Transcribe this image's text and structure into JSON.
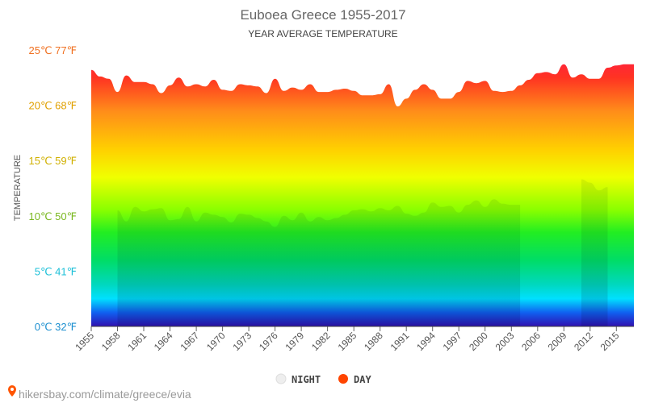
{
  "chart_data": {
    "type": "area",
    "title": "Euboea Greece 1955-2017",
    "subtitle": "YEAR AVERAGE TEMPERATURE",
    "ylabel": "TEMPERATURE",
    "ylim": [
      0,
      25
    ],
    "xlim": [
      1955,
      2017
    ],
    "y_ticks": [
      {
        "value": 0,
        "label": "0℃ 32℉",
        "color": "#1e90d0"
      },
      {
        "value": 5,
        "label": "5℃ 41℉",
        "color": "#1ec0d8"
      },
      {
        "value": 10,
        "label": "10℃ 50℉",
        "color": "#7ab820"
      },
      {
        "value": 15,
        "label": "15℃ 59℉",
        "color": "#d0b000"
      },
      {
        "value": 20,
        "label": "20℃ 68℉",
        "color": "#e0a000"
      },
      {
        "value": 25,
        "label": "25℃ 77℉",
        "color": "#f07020"
      }
    ],
    "x_ticks": [
      1955,
      1958,
      1961,
      1964,
      1967,
      1970,
      1973,
      1976,
      1979,
      1982,
      1985,
      1988,
      1991,
      1994,
      1997,
      2000,
      2003,
      2006,
      2009,
      2012,
      2015
    ],
    "grid": false,
    "legend_position": "bottom",
    "series": [
      {
        "name": "NIGHT",
        "color": "#eeeeee",
        "segments": [
          {
            "x": [
              1958,
              1959,
              1960,
              1961,
              1962,
              1963,
              1964,
              1965,
              1966,
              1967,
              1968,
              1969,
              1970,
              1971,
              1972,
              1973,
              1974,
              1975,
              1976,
              1977,
              1978,
              1979,
              1980,
              1981,
              1982,
              1983,
              1984,
              1985,
              1986,
              1987,
              1988,
              1989,
              1990,
              1991,
              1992,
              1993,
              1994,
              1995,
              1996,
              1997,
              1998,
              1999,
              2000,
              2001,
              2002,
              2003,
              2004
            ],
            "values": [
              10.5,
              9.5,
              10.8,
              10.4,
              10.6,
              10.7,
              9.6,
              9.7,
              10.8,
              9.5,
              10.3,
              10.1,
              9.9,
              9.4,
              10.2,
              10.1,
              9.8,
              9.5,
              9.0,
              10.0,
              9.6,
              10.3,
              9.5,
              9.9,
              9.6,
              9.8,
              10.1,
              10.5,
              10.6,
              10.4,
              10.7,
              10.5,
              10.9,
              10.2,
              10.0,
              10.3,
              11.2,
              10.8,
              10.9,
              10.3,
              11.0,
              11.4,
              10.8,
              11.5,
              11.1,
              11.0,
              11.0
            ]
          },
          {
            "x": [
              2011,
              2012,
              2013,
              2014
            ],
            "values": [
              13.3,
              13.0,
              12.3,
              12.6
            ]
          }
        ]
      },
      {
        "name": "DAY",
        "color": "#ff4400",
        "segments": [
          {
            "x": [
              1955,
              1956,
              1957,
              1958,
              1959,
              1960,
              1961,
              1962,
              1963,
              1964,
              1965,
              1966,
              1967,
              1968,
              1969,
              1970,
              1971,
              1972,
              1973,
              1974,
              1975,
              1976,
              1977,
              1978,
              1979,
              1980,
              1981,
              1982,
              1983,
              1984,
              1985,
              1986,
              1987,
              1988,
              1989,
              1990,
              1991,
              1992,
              1993,
              1994,
              1995,
              1996,
              1997,
              1998,
              1999,
              2000,
              2001,
              2002,
              2003,
              2004,
              2005,
              2006,
              2007,
              2008,
              2009,
              2010,
              2011,
              2012,
              2013,
              2014,
              2015,
              2016,
              2017
            ],
            "values": [
              23.2,
              22.6,
              22.4,
              21.2,
              22.7,
              22.1,
              22.1,
              21.9,
              21.1,
              21.8,
              22.5,
              21.7,
              21.9,
              21.7,
              22.3,
              21.4,
              21.3,
              21.9,
              21.8,
              21.7,
              21.1,
              22.4,
              21.3,
              21.6,
              21.4,
              21.9,
              21.2,
              21.2,
              21.4,
              21.5,
              21.3,
              20.9,
              20.9,
              21.0,
              21.9,
              19.9,
              20.6,
              21.4,
              21.9,
              21.4,
              20.6,
              20.6,
              21.2,
              22.2,
              22.0,
              22.2,
              21.3,
              21.2,
              21.3,
              21.8,
              22.3,
              22.9,
              23.0,
              22.8,
              23.7,
              22.5,
              22.8,
              22.4,
              22.4,
              23.4,
              23.6,
              23.7,
              23.7
            ]
          }
        ]
      }
    ]
  },
  "legend": {
    "night_label": "NIGHT",
    "day_label": "DAY"
  },
  "source": {
    "text": "hikersbay.com/climate/greece/evia"
  }
}
